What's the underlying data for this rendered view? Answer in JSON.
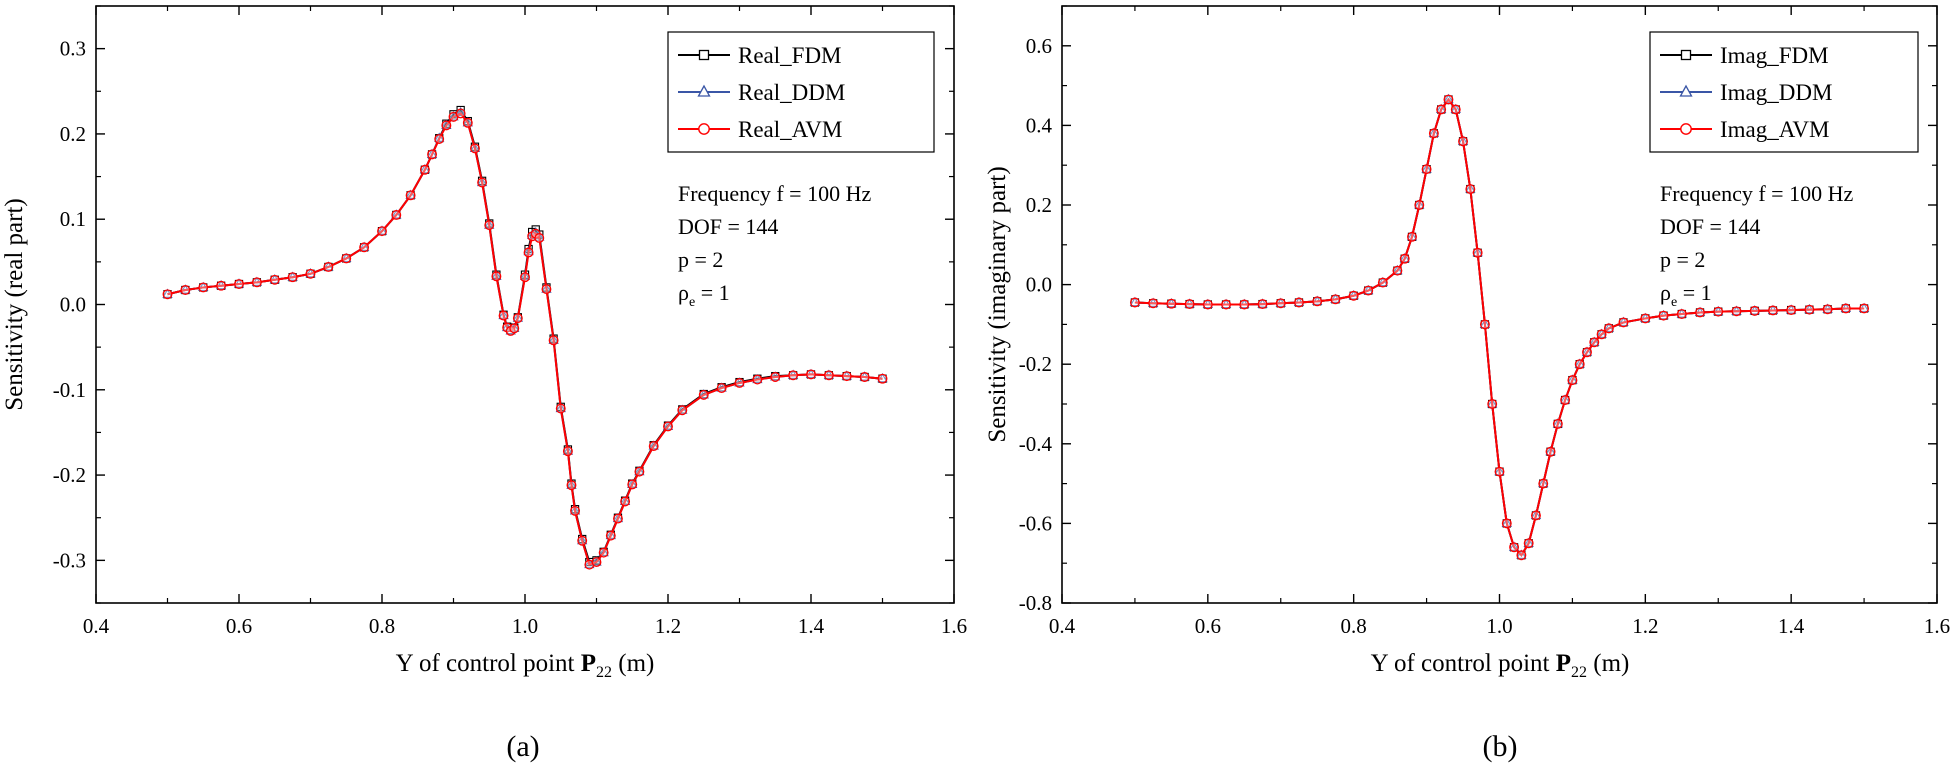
{
  "figure": {
    "captions": [
      "(a)",
      "(b)"
    ]
  },
  "colors": {
    "fdm": "#000000",
    "ddm": "#3a56a6",
    "avm": "#ff0000"
  },
  "chart_data": [
    {
      "type": "line",
      "caption": "(a)",
      "xlabel": "Y of control point P22 (m)",
      "xlabel_parts": {
        "pre": "Y of control point ",
        "bold": "P",
        "sub": "22",
        "post": " (m)"
      },
      "ylabel": "Sensitivity (real part)",
      "xlim": [
        0.4,
        1.6
      ],
      "ylim": [
        -0.35,
        0.35
      ],
      "xticks": [
        0.4,
        0.6,
        0.8,
        1.0,
        1.2,
        1.4,
        1.6
      ],
      "xtick_labels": [
        "0.4",
        "0.6",
        "0.8",
        "1.0",
        "1.2",
        "1.4",
        "1.6"
      ],
      "yticks": [
        -0.3,
        -0.2,
        -0.1,
        0.0,
        0.1,
        0.2,
        0.3
      ],
      "ytick_labels": [
        "-0.3",
        "-0.2",
        "-0.1",
        "0.0",
        "0.1",
        "0.2",
        "0.3"
      ],
      "legend_position": "top-right",
      "annotations": [
        "Frequency f = 100 Hz",
        "DOF = 144",
        "p = 2",
        "ρ",
        "e",
        " = 1"
      ],
      "x": [
        0.5,
        0.525,
        0.55,
        0.575,
        0.6,
        0.625,
        0.65,
        0.675,
        0.7,
        0.725,
        0.75,
        0.775,
        0.8,
        0.82,
        0.84,
        0.86,
        0.87,
        0.88,
        0.89,
        0.9,
        0.91,
        0.92,
        0.93,
        0.94,
        0.95,
        0.96,
        0.97,
        0.975,
        0.98,
        0.985,
        0.99,
        1.0,
        1.005,
        1.01,
        1.015,
        1.02,
        1.03,
        1.04,
        1.05,
        1.06,
        1.065,
        1.07,
        1.08,
        1.09,
        1.1,
        1.11,
        1.12,
        1.13,
        1.14,
        1.15,
        1.16,
        1.18,
        1.2,
        1.22,
        1.25,
        1.275,
        1.3,
        1.325,
        1.35,
        1.375,
        1.4,
        1.425,
        1.45,
        1.475,
        1.5
      ],
      "series": [
        {
          "name": "Real_FDM",
          "marker": "square",
          "values": [
            0.012,
            0.017,
            0.02,
            0.022,
            0.024,
            0.026,
            0.029,
            0.032,
            0.036,
            0.044,
            0.054,
            0.067,
            0.086,
            0.105,
            0.128,
            0.158,
            0.176,
            0.195,
            0.212,
            0.223,
            0.228,
            0.215,
            0.185,
            0.145,
            0.095,
            0.035,
            -0.012,
            -0.026,
            -0.03,
            -0.027,
            -0.015,
            0.035,
            0.065,
            0.085,
            0.088,
            0.082,
            0.02,
            -0.04,
            -0.12,
            -0.17,
            -0.21,
            -0.24,
            -0.275,
            -0.302,
            -0.3,
            -0.29,
            -0.27,
            -0.25,
            -0.23,
            -0.21,
            -0.195,
            -0.165,
            -0.142,
            -0.123,
            -0.105,
            -0.097,
            -0.091,
            -0.087,
            -0.084,
            -0.083,
            -0.082,
            -0.083,
            -0.084,
            -0.085,
            -0.087
          ]
        },
        {
          "name": "Real_DDM",
          "marker": "triangle",
          "values": [
            0.012,
            0.017,
            0.02,
            0.022,
            0.024,
            0.026,
            0.029,
            0.032,
            0.036,
            0.044,
            0.054,
            0.067,
            0.086,
            0.105,
            0.128,
            0.158,
            0.176,
            0.195,
            0.21,
            0.22,
            0.225,
            0.213,
            0.183,
            0.143,
            0.093,
            0.033,
            -0.013,
            -0.027,
            -0.031,
            -0.028,
            -0.016,
            0.033,
            0.062,
            0.081,
            0.084,
            0.079,
            0.018,
            -0.042,
            -0.122,
            -0.172,
            -0.212,
            -0.242,
            -0.277,
            -0.305,
            -0.302,
            -0.291,
            -0.271,
            -0.251,
            -0.231,
            -0.211,
            -0.196,
            -0.166,
            -0.143,
            -0.124,
            -0.106,
            -0.098,
            -0.092,
            -0.088,
            -0.085,
            -0.083,
            -0.082,
            -0.083,
            -0.084,
            -0.085,
            -0.087
          ]
        },
        {
          "name": "Real_AVM",
          "marker": "circle",
          "values": [
            0.012,
            0.017,
            0.02,
            0.022,
            0.024,
            0.026,
            0.029,
            0.032,
            0.036,
            0.044,
            0.054,
            0.067,
            0.086,
            0.105,
            0.128,
            0.158,
            0.176,
            0.194,
            0.21,
            0.22,
            0.224,
            0.213,
            0.183,
            0.143,
            0.093,
            0.033,
            -0.013,
            -0.027,
            -0.031,
            -0.028,
            -0.016,
            0.032,
            0.061,
            0.08,
            0.083,
            0.078,
            0.018,
            -0.042,
            -0.122,
            -0.172,
            -0.212,
            -0.242,
            -0.277,
            -0.305,
            -0.302,
            -0.291,
            -0.271,
            -0.251,
            -0.231,
            -0.211,
            -0.196,
            -0.166,
            -0.143,
            -0.124,
            -0.106,
            -0.098,
            -0.092,
            -0.088,
            -0.085,
            -0.083,
            -0.082,
            -0.083,
            -0.084,
            -0.085,
            -0.087
          ]
        }
      ]
    },
    {
      "type": "line",
      "caption": "(b)",
      "xlabel": "Y of control point P22 (m)",
      "xlabel_parts": {
        "pre": "Y of control point ",
        "bold": "P",
        "sub": "22",
        "post": " (m)"
      },
      "ylabel": "Sensitivity (imaginary part)",
      "xlim": [
        0.4,
        1.6
      ],
      "ylim": [
        -0.8,
        0.7
      ],
      "xticks": [
        0.4,
        0.6,
        0.8,
        1.0,
        1.2,
        1.4,
        1.6
      ],
      "xtick_labels": [
        "0.4",
        "0.6",
        "0.8",
        "1.0",
        "1.2",
        "1.4",
        "1.6"
      ],
      "yticks": [
        -0.8,
        -0.6,
        -0.4,
        -0.2,
        0.0,
        0.2,
        0.4,
        0.6
      ],
      "ytick_labels": [
        "-0.8",
        "-0.6",
        "-0.4",
        "-0.2",
        "0.0",
        "0.2",
        "0.4",
        "0.6"
      ],
      "legend_position": "top-right",
      "annotations": [
        "Frequency f = 100 Hz",
        "DOF = 144",
        "p = 2",
        "ρ",
        "e",
        " = 1"
      ],
      "x": [
        0.5,
        0.525,
        0.55,
        0.575,
        0.6,
        0.625,
        0.65,
        0.675,
        0.7,
        0.725,
        0.75,
        0.775,
        0.8,
        0.82,
        0.84,
        0.86,
        0.87,
        0.88,
        0.89,
        0.9,
        0.91,
        0.92,
        0.93,
        0.94,
        0.95,
        0.96,
        0.97,
        0.98,
        0.99,
        1.0,
        1.01,
        1.02,
        1.03,
        1.04,
        1.05,
        1.06,
        1.07,
        1.08,
        1.09,
        1.1,
        1.11,
        1.12,
        1.13,
        1.14,
        1.15,
        1.17,
        1.2,
        1.225,
        1.25,
        1.275,
        1.3,
        1.325,
        1.35,
        1.375,
        1.4,
        1.425,
        1.45,
        1.475,
        1.5
      ],
      "series": [
        {
          "name": "Imag_FDM",
          "marker": "square",
          "values": [
            -0.045,
            -0.047,
            -0.048,
            -0.049,
            -0.05,
            -0.05,
            -0.05,
            -0.049,
            -0.047,
            -0.045,
            -0.042,
            -0.037,
            -0.028,
            -0.015,
            0.005,
            0.035,
            0.065,
            0.12,
            0.2,
            0.29,
            0.38,
            0.44,
            0.465,
            0.44,
            0.36,
            0.24,
            0.08,
            -0.1,
            -0.3,
            -0.47,
            -0.6,
            -0.66,
            -0.68,
            -0.65,
            -0.58,
            -0.5,
            -0.42,
            -0.35,
            -0.29,
            -0.24,
            -0.2,
            -0.17,
            -0.145,
            -0.125,
            -0.11,
            -0.095,
            -0.085,
            -0.078,
            -0.074,
            -0.07,
            -0.068,
            -0.067,
            -0.066,
            -0.065,
            -0.064,
            -0.063,
            -0.062,
            -0.06,
            -0.06
          ]
        },
        {
          "name": "Imag_DDM",
          "marker": "triangle",
          "values": [
            -0.045,
            -0.047,
            -0.048,
            -0.049,
            -0.05,
            -0.05,
            -0.05,
            -0.049,
            -0.047,
            -0.045,
            -0.042,
            -0.037,
            -0.028,
            -0.015,
            0.005,
            0.035,
            0.065,
            0.12,
            0.2,
            0.29,
            0.38,
            0.44,
            0.465,
            0.44,
            0.36,
            0.24,
            0.08,
            -0.1,
            -0.3,
            -0.47,
            -0.6,
            -0.66,
            -0.68,
            -0.65,
            -0.58,
            -0.5,
            -0.42,
            -0.35,
            -0.29,
            -0.24,
            -0.2,
            -0.17,
            -0.145,
            -0.125,
            -0.11,
            -0.095,
            -0.085,
            -0.078,
            -0.074,
            -0.07,
            -0.068,
            -0.067,
            -0.066,
            -0.065,
            -0.064,
            -0.063,
            -0.062,
            -0.06,
            -0.06
          ]
        },
        {
          "name": "Imag_AVM",
          "marker": "circle",
          "values": [
            -0.045,
            -0.047,
            -0.048,
            -0.049,
            -0.05,
            -0.05,
            -0.05,
            -0.049,
            -0.047,
            -0.045,
            -0.042,
            -0.037,
            -0.028,
            -0.015,
            0.005,
            0.035,
            0.065,
            0.12,
            0.2,
            0.29,
            0.38,
            0.44,
            0.465,
            0.44,
            0.36,
            0.24,
            0.08,
            -0.1,
            -0.3,
            -0.47,
            -0.6,
            -0.66,
            -0.68,
            -0.65,
            -0.58,
            -0.5,
            -0.42,
            -0.35,
            -0.29,
            -0.24,
            -0.2,
            -0.17,
            -0.145,
            -0.125,
            -0.11,
            -0.095,
            -0.085,
            -0.078,
            -0.074,
            -0.07,
            -0.068,
            -0.067,
            -0.066,
            -0.065,
            -0.064,
            -0.063,
            -0.062,
            -0.06,
            -0.06
          ]
        }
      ]
    }
  ]
}
